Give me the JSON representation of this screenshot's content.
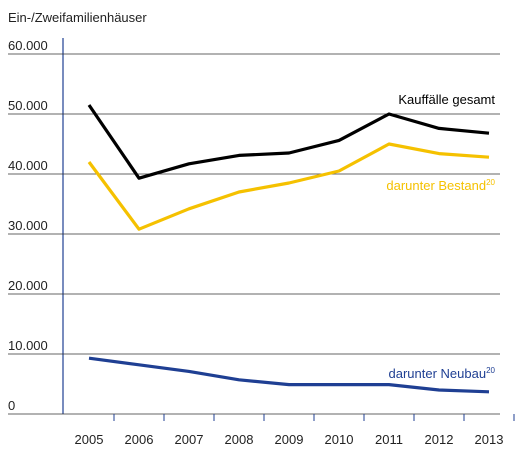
{
  "chart_data": {
    "type": "line",
    "axis_label": "Ein-/Zweifamilienhäuser",
    "categories": [
      "2005",
      "2006",
      "2007",
      "2008",
      "2009",
      "2010",
      "2011",
      "2012",
      "2013"
    ],
    "series": [
      {
        "name": "Kauffälle gesamt",
        "color": "#000000",
        "values": [
          51500,
          39300,
          41700,
          43100,
          43500,
          45600,
          50000,
          47600,
          46800
        ]
      },
      {
        "name": "darunter Bestand",
        "note": "20",
        "color": "#f5c100",
        "values": [
          42000,
          30800,
          34200,
          37000,
          38500,
          40500,
          45000,
          43400,
          42800
        ]
      },
      {
        "name": "darunter Neubau",
        "note": "20",
        "color": "#1f3f93",
        "values": [
          9300,
          8200,
          7100,
          5700,
          4900,
          4900,
          4900,
          4000,
          3700
        ]
      }
    ],
    "ylim": [
      0,
      60000
    ],
    "yticks": [
      0,
      {
        "value": 10000,
        "label": "10.000"
      },
      {
        "value": 20000,
        "label": "20.000"
      },
      {
        "value": 30000,
        "label": "30.000"
      },
      {
        "value": 40000,
        "label": "40.000"
      },
      {
        "value": 50000,
        "label": "50.000"
      },
      {
        "value": 60000,
        "label": "60.000"
      }
    ],
    "grid": true
  }
}
